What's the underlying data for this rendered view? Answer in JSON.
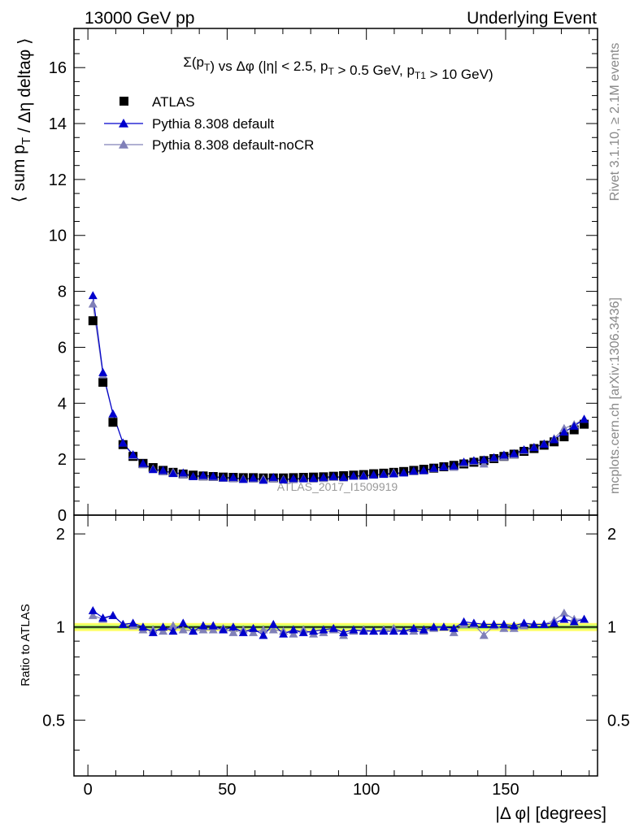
{
  "header": {
    "left": "13000 GeV pp",
    "right": "Underlying Event"
  },
  "side_labels": {
    "top": "Rivet 3.1.10, ≥ 2.1M events",
    "bottom": "mcplots.cern.ch [arXiv:1306.3436]"
  },
  "chart_data": [
    {
      "type": "scatter",
      "title": "Σ(pT) vs Δφ (|η| < 2.5, pT > 0.5 GeV, pT1 > 10 GeV)",
      "ylabel": "⟨ sum pT / Δη deltaφ ⟩",
      "watermark": "ATLAS_2017_I1509919",
      "xlim": [
        -5,
        183
      ],
      "ylim": [
        0,
        17.4
      ],
      "yticks": [
        0,
        2,
        4,
        6,
        8,
        10,
        12,
        14,
        16
      ],
      "legend_position": "top-left",
      "x": [
        1.8,
        5.4,
        9.0,
        12.6,
        16.2,
        19.8,
        23.4,
        27.0,
        30.6,
        34.2,
        37.8,
        41.4,
        45.0,
        48.6,
        52.2,
        55.8,
        59.4,
        63.0,
        66.6,
        70.2,
        73.8,
        77.4,
        81.0,
        84.6,
        88.2,
        91.8,
        95.4,
        99.0,
        102.6,
        106.2,
        109.8,
        113.4,
        117.0,
        120.6,
        124.2,
        127.8,
        131.4,
        135.0,
        138.6,
        142.2,
        145.8,
        149.4,
        153.0,
        156.6,
        160.2,
        163.8,
        167.4,
        171.0,
        174.6,
        178.2
      ],
      "series": [
        {
          "name": "ATLAS",
          "color": "#000000",
          "marker": "square",
          "values": [
            6.95,
            4.75,
            3.32,
            2.52,
            2.1,
            1.85,
            1.7,
            1.6,
            1.53,
            1.47,
            1.43,
            1.4,
            1.38,
            1.36,
            1.35,
            1.34,
            1.34,
            1.33,
            1.33,
            1.33,
            1.34,
            1.35,
            1.36,
            1.37,
            1.39,
            1.41,
            1.43,
            1.45,
            1.48,
            1.5,
            1.53,
            1.56,
            1.6,
            1.64,
            1.68,
            1.73,
            1.78,
            1.83,
            1.89,
            1.95,
            2.02,
            2.1,
            2.18,
            2.28,
            2.38,
            2.5,
            2.62,
            2.8,
            3.05,
            3.25
          ]
        },
        {
          "name": "Pythia 8.308 default",
          "color": "#0000cc",
          "marker": "triangle",
          "values": [
            7.85,
            5.1,
            3.62,
            2.58,
            2.16,
            1.85,
            1.63,
            1.6,
            1.49,
            1.51,
            1.38,
            1.42,
            1.39,
            1.33,
            1.35,
            1.28,
            1.33,
            1.25,
            1.35,
            1.26,
            1.31,
            1.3,
            1.32,
            1.35,
            1.38,
            1.35,
            1.4,
            1.4,
            1.44,
            1.46,
            1.48,
            1.51,
            1.58,
            1.6,
            1.68,
            1.73,
            1.76,
            1.9,
            1.95,
            1.98,
            2.06,
            2.15,
            2.2,
            2.34,
            2.42,
            2.54,
            2.7,
            2.97,
            3.18,
            3.43
          ]
        },
        {
          "name": "Pythia 8.308 default-noCR",
          "color": "#8080b8",
          "marker": "triangle",
          "values": [
            7.55,
            5.02,
            3.62,
            2.58,
            2.13,
            1.8,
            1.66,
            1.55,
            1.54,
            1.44,
            1.38,
            1.37,
            1.35,
            1.34,
            1.3,
            1.31,
            1.29,
            1.31,
            1.3,
            1.29,
            1.27,
            1.32,
            1.29,
            1.31,
            1.36,
            1.33,
            1.39,
            1.42,
            1.43,
            1.47,
            1.52,
            1.51,
            1.55,
            1.58,
            1.67,
            1.73,
            1.71,
            1.86,
            1.92,
            1.83,
            2.04,
            2.08,
            2.15,
            2.31,
            2.43,
            2.55,
            2.74,
            3.1,
            3.24,
            3.43
          ]
        }
      ]
    },
    {
      "type": "scatter",
      "ylabel": "Ratio to ATLAS",
      "xlabel": "|Δ φ| [degrees]",
      "xticks": [
        0,
        50,
        100,
        150
      ],
      "xlim": [
        -5,
        183
      ],
      "ylim": [
        0.33,
        2.3
      ],
      "yticks_major": [
        0.5,
        1,
        2
      ],
      "yticks_labels": [
        "0.5",
        "1",
        "2"
      ],
      "band_colors": [
        "#ffff66",
        "#a8e860"
      ],
      "series": [
        {
          "name": "Pythia 8.308 default",
          "color": "#0000cc",
          "values": [
            1.13,
            1.07,
            1.09,
            1.02,
            1.03,
            1.0,
            0.96,
            1.0,
            0.97,
            1.03,
            0.97,
            1.01,
            1.01,
            0.98,
            1.0,
            0.96,
            0.99,
            0.94,
            1.02,
            0.95,
            0.98,
            0.96,
            0.97,
            0.98,
            0.99,
            0.96,
            0.98,
            0.97,
            0.97,
            0.97,
            0.97,
            0.97,
            0.99,
            0.98,
            1.0,
            1.0,
            0.99,
            1.04,
            1.03,
            1.02,
            1.02,
            1.02,
            1.01,
            1.03,
            1.02,
            1.02,
            1.03,
            1.06,
            1.04,
            1.06
          ]
        },
        {
          "name": "Pythia 8.308 default-noCR",
          "color": "#8080b8",
          "values": [
            1.09,
            1.06,
            1.09,
            1.02,
            1.01,
            0.98,
            0.98,
            0.97,
            1.01,
            0.98,
            0.97,
            0.98,
            0.98,
            0.99,
            0.96,
            0.98,
            0.96,
            0.98,
            0.98,
            0.97,
            0.95,
            0.98,
            0.95,
            0.96,
            0.98,
            0.94,
            0.97,
            0.98,
            0.97,
            0.98,
            0.99,
            0.97,
            0.97,
            0.97,
            0.99,
            1.0,
            0.96,
            1.02,
            1.02,
            0.94,
            1.01,
            0.99,
            0.99,
            1.01,
            1.02,
            1.02,
            1.05,
            1.11,
            1.06,
            1.06
          ]
        }
      ]
    }
  ]
}
